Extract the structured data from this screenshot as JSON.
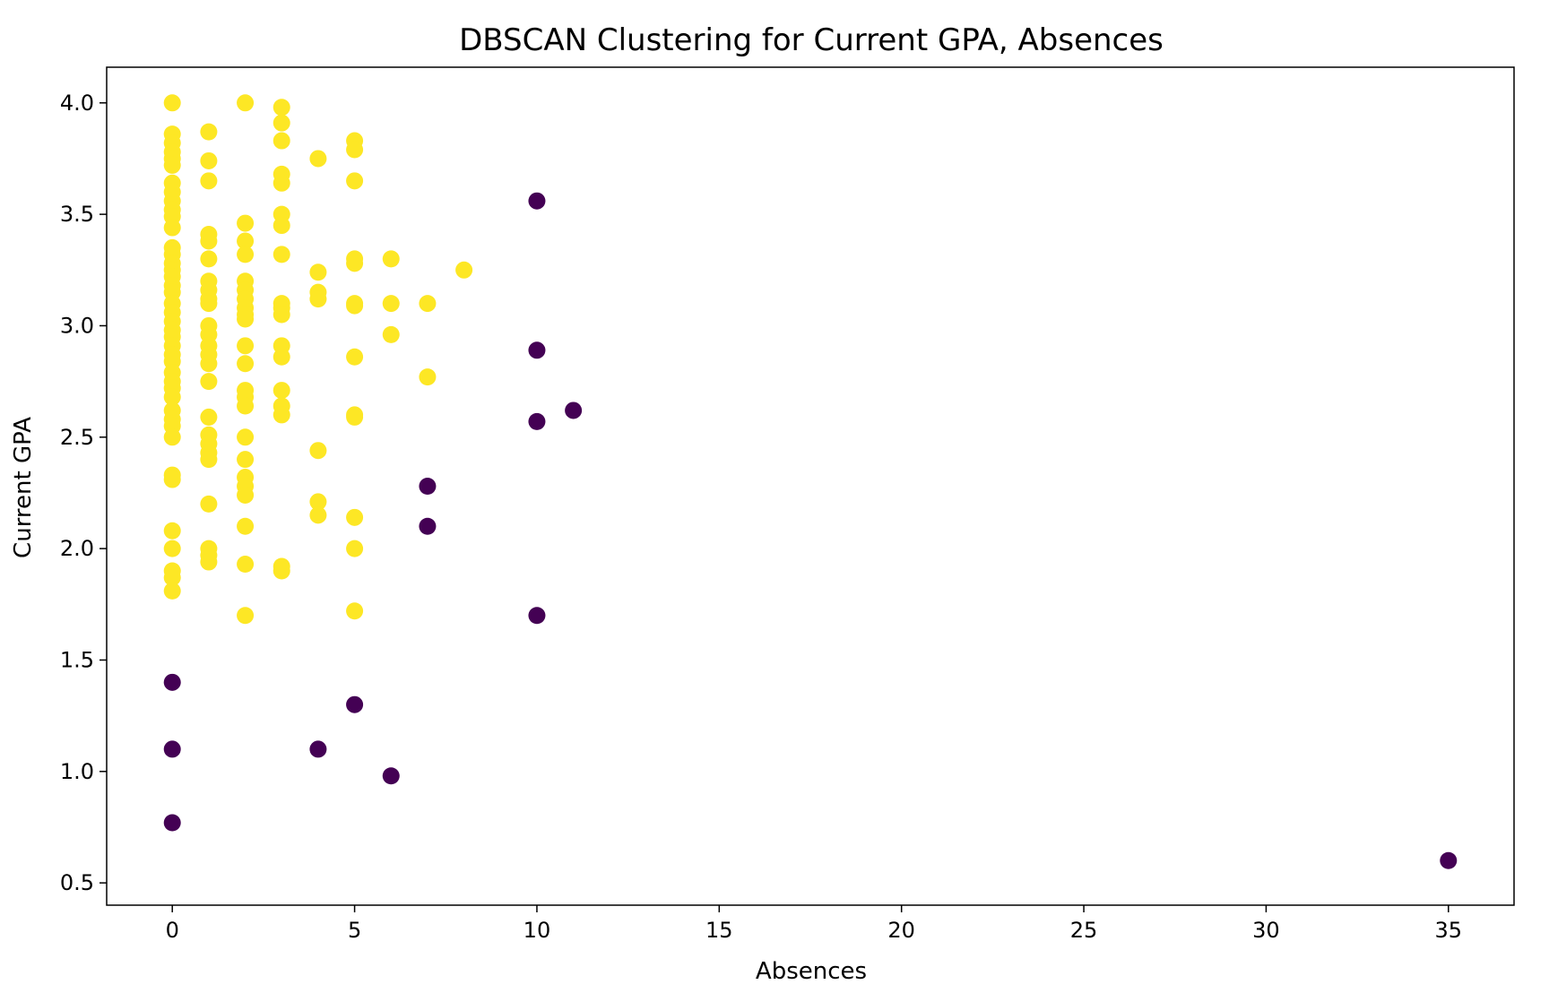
{
  "chart_data": {
    "type": "scatter",
    "title": "DBSCAN Clustering for Current GPA, Absences",
    "xlabel": "Absences",
    "ylabel": "Current GPA",
    "xlim": [
      -1.8,
      36.8
    ],
    "ylim": [
      0.4,
      4.16
    ],
    "xticks": [
      0,
      5,
      10,
      15,
      20,
      25,
      30,
      35
    ],
    "yticks": [
      0.5,
      1.0,
      1.5,
      2.0,
      2.5,
      3.0,
      3.5,
      4.0
    ],
    "grid": false,
    "legend": "none",
    "series": [
      {
        "color": "#fde725",
        "points": [
          [
            0,
            4.0
          ],
          [
            0,
            3.86
          ],
          [
            0,
            3.82
          ],
          [
            0,
            3.78
          ],
          [
            0,
            3.75
          ],
          [
            0,
            3.72
          ],
          [
            0,
            3.64
          ],
          [
            0,
            3.6
          ],
          [
            0,
            3.56
          ],
          [
            0,
            3.52
          ],
          [
            0,
            3.49
          ],
          [
            0,
            3.44
          ],
          [
            0,
            3.35
          ],
          [
            0,
            3.32
          ],
          [
            0,
            3.28
          ],
          [
            0,
            3.25
          ],
          [
            0,
            3.22
          ],
          [
            0,
            3.18
          ],
          [
            0,
            3.15
          ],
          [
            0,
            3.1
          ],
          [
            0,
            3.06
          ],
          [
            0,
            3.02
          ],
          [
            0,
            2.98
          ],
          [
            0,
            2.95
          ],
          [
            0,
            2.91
          ],
          [
            0,
            2.87
          ],
          [
            0,
            2.84
          ],
          [
            0,
            2.79
          ],
          [
            0,
            2.75
          ],
          [
            0,
            2.72
          ],
          [
            0,
            2.68
          ],
          [
            0,
            2.62
          ],
          [
            0,
            2.58
          ],
          [
            0,
            2.55
          ],
          [
            0,
            2.5
          ],
          [
            0,
            2.33
          ],
          [
            0,
            2.31
          ],
          [
            0,
            2.08
          ],
          [
            0,
            2.0
          ],
          [
            0,
            1.9
          ],
          [
            0,
            1.87
          ],
          [
            0,
            1.81
          ],
          [
            1,
            3.87
          ],
          [
            1,
            3.74
          ],
          [
            1,
            3.65
          ],
          [
            1,
            3.41
          ],
          [
            1,
            3.38
          ],
          [
            1,
            3.3
          ],
          [
            1,
            3.2
          ],
          [
            1,
            3.16
          ],
          [
            1,
            3.12
          ],
          [
            1,
            3.1
          ],
          [
            1,
            3.0
          ],
          [
            1,
            2.96
          ],
          [
            1,
            2.91
          ],
          [
            1,
            2.87
          ],
          [
            1,
            2.83
          ],
          [
            1,
            2.75
          ],
          [
            1,
            2.59
          ],
          [
            1,
            2.51
          ],
          [
            1,
            2.47
          ],
          [
            1,
            2.43
          ],
          [
            1,
            2.4
          ],
          [
            1,
            2.2
          ],
          [
            1,
            2.0
          ],
          [
            1,
            1.97
          ],
          [
            1,
            1.94
          ],
          [
            2,
            4.0
          ],
          [
            2,
            3.46
          ],
          [
            2,
            3.38
          ],
          [
            2,
            3.32
          ],
          [
            2,
            3.2
          ],
          [
            2,
            3.16
          ],
          [
            2,
            3.12
          ],
          [
            2,
            3.08
          ],
          [
            2,
            3.05
          ],
          [
            2,
            3.03
          ],
          [
            2,
            2.91
          ],
          [
            2,
            2.83
          ],
          [
            2,
            2.71
          ],
          [
            2,
            2.68
          ],
          [
            2,
            2.64
          ],
          [
            2,
            2.5
          ],
          [
            2,
            2.4
          ],
          [
            2,
            2.32
          ],
          [
            2,
            2.28
          ],
          [
            2,
            2.24
          ],
          [
            2,
            2.1
          ],
          [
            2,
            1.93
          ],
          [
            2,
            1.7
          ],
          [
            3,
            3.98
          ],
          [
            3,
            3.91
          ],
          [
            3,
            3.83
          ],
          [
            3,
            3.68
          ],
          [
            3,
            3.64
          ],
          [
            3,
            3.5
          ],
          [
            3,
            3.45
          ],
          [
            3,
            3.32
          ],
          [
            3,
            3.1
          ],
          [
            3,
            3.08
          ],
          [
            3,
            3.05
          ],
          [
            3,
            2.91
          ],
          [
            3,
            2.86
          ],
          [
            3,
            2.71
          ],
          [
            3,
            2.64
          ],
          [
            3,
            2.6
          ],
          [
            3,
            1.92
          ],
          [
            3,
            1.9
          ],
          [
            4,
            3.75
          ],
          [
            4,
            3.24
          ],
          [
            4,
            3.15
          ],
          [
            4,
            3.12
          ],
          [
            4,
            2.44
          ],
          [
            4,
            2.21
          ],
          [
            4,
            2.15
          ],
          [
            5,
            3.83
          ],
          [
            5,
            3.79
          ],
          [
            5,
            3.65
          ],
          [
            5,
            3.3
          ],
          [
            5,
            3.28
          ],
          [
            5,
            3.1
          ],
          [
            5,
            3.09
          ],
          [
            5,
            2.86
          ],
          [
            5,
            2.6
          ],
          [
            5,
            2.59
          ],
          [
            5,
            2.14
          ],
          [
            5,
            2.0
          ],
          [
            5,
            1.72
          ],
          [
            6,
            3.3
          ],
          [
            6,
            3.1
          ],
          [
            6,
            2.96
          ],
          [
            7,
            3.1
          ],
          [
            7,
            2.77
          ],
          [
            8,
            3.25
          ]
        ]
      },
      {
        "color": "#440154",
        "points": [
          [
            10,
            3.56
          ],
          [
            10,
            2.89
          ],
          [
            10,
            2.57
          ],
          [
            11,
            2.62
          ],
          [
            10,
            1.7
          ],
          [
            7,
            2.28
          ],
          [
            7,
            2.1
          ],
          [
            0,
            1.4
          ],
          [
            0,
            1.1
          ],
          [
            0,
            0.77
          ],
          [
            5,
            1.3
          ],
          [
            4,
            1.1
          ],
          [
            6,
            0.98
          ],
          [
            35,
            0.6
          ]
        ]
      }
    ]
  }
}
